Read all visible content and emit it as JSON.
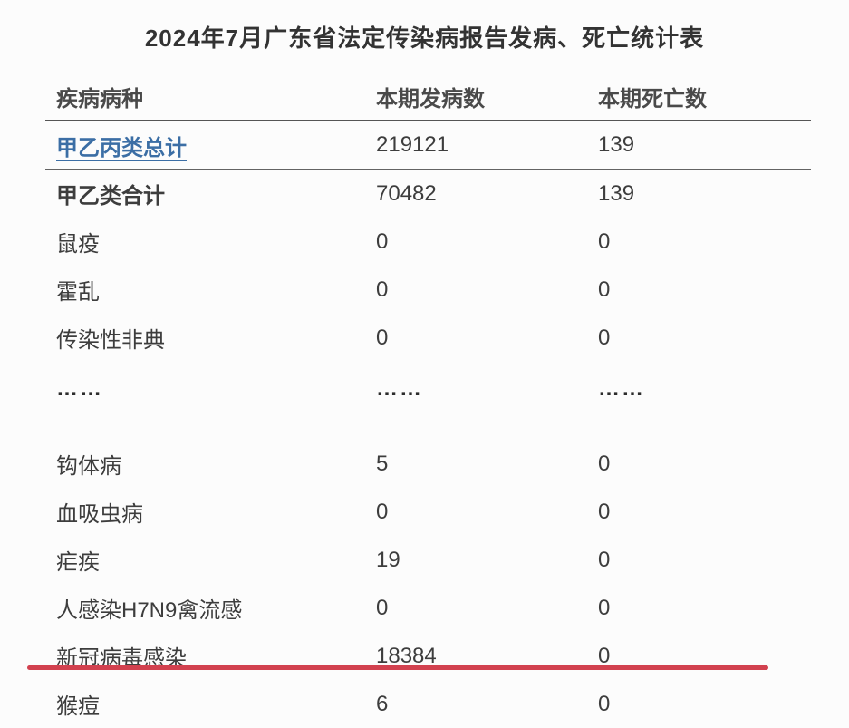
{
  "page": {
    "title": "2024年7月广东省法定传染病报告发病、死亡统计表"
  },
  "colors": {
    "link_blue": "#3b6ea5",
    "underline_red": "#d2414f",
    "text_dark": "#3d3d3d",
    "divider_light": "#bdbdbd",
    "divider_dark": "#555555"
  },
  "table": {
    "columns": [
      "疾病病种",
      "本期发病数",
      "本期死亡数"
    ],
    "rows": [
      {
        "name": "甲乙丙类总计",
        "cases": "219121",
        "deaths": "139",
        "variant": "link",
        "divider_below": true
      },
      {
        "name": "甲乙类合计",
        "cases": "70482",
        "deaths": "139",
        "variant": "bold"
      },
      {
        "name": "鼠疫",
        "cases": "0",
        "deaths": "0",
        "variant": "normal"
      },
      {
        "name": "霍乱",
        "cases": "0",
        "deaths": "0",
        "variant": "normal"
      },
      {
        "name": "传染性非典",
        "cases": "0",
        "deaths": "0",
        "variant": "normal"
      },
      {
        "name": "……",
        "cases": "……",
        "deaths": "……",
        "variant": "ellipsis"
      },
      {
        "name": "钩体病",
        "cases": "5",
        "deaths": "0",
        "variant": "normal"
      },
      {
        "name": "血吸虫病",
        "cases": "0",
        "deaths": "0",
        "variant": "normal"
      },
      {
        "name": "疟疾",
        "cases": "19",
        "deaths": "0",
        "variant": "normal"
      },
      {
        "name": "人感染H7N9禽流感",
        "cases": "0",
        "deaths": "0",
        "variant": "normal"
      },
      {
        "name": "新冠病毒感染",
        "cases": "18384",
        "deaths": "0",
        "variant": "normal",
        "highlighted": true
      },
      {
        "name": "猴痘",
        "cases": "6",
        "deaths": "0",
        "variant": "normal"
      }
    ]
  }
}
